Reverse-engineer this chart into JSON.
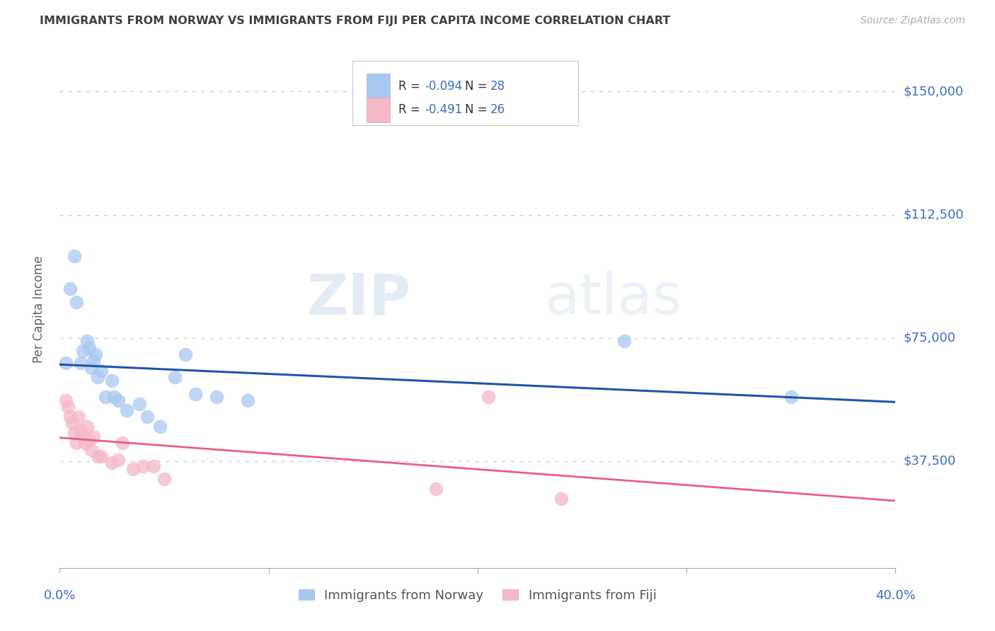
{
  "title": "IMMIGRANTS FROM NORWAY VS IMMIGRANTS FROM FIJI PER CAPITA INCOME CORRELATION CHART",
  "source": "Source: ZipAtlas.com",
  "ylabel": "Per Capita Income",
  "xlim": [
    0.0,
    40.0
  ],
  "ylim": [
    5000,
    162500
  ],
  "yticks": [
    37500,
    75000,
    112500,
    150000
  ],
  "ytick_labels": [
    "$37,500",
    "$75,000",
    "$112,500",
    "$150,000"
  ],
  "xtick_positions": [
    0.0,
    10.0,
    20.0,
    30.0,
    40.0
  ],
  "legend_label1": "Immigrants from Norway",
  "legend_label2": "Immigrants from Fiji",
  "R1": -0.094,
  "N1": 28,
  "R2": -0.491,
  "N2": 26,
  "color_norway": "#a8c8f0",
  "color_fiji": "#f4b8c8",
  "color_norway_line": "#2255aa",
  "color_fiji_line": "#e86080",
  "norway_x": [
    0.3,
    0.5,
    0.7,
    0.8,
    1.0,
    1.1,
    1.3,
    1.4,
    1.5,
    1.6,
    1.7,
    1.8,
    2.0,
    2.2,
    2.5,
    2.6,
    2.8,
    3.2,
    3.8,
    4.2,
    4.8,
    5.5,
    6.0,
    6.5,
    7.5,
    9.0,
    27.0,
    35.0
  ],
  "norway_y": [
    67500,
    90000,
    100000,
    86000,
    67500,
    71000,
    74000,
    72000,
    66000,
    68000,
    70000,
    63000,
    65000,
    57000,
    62000,
    57000,
    56000,
    53000,
    55000,
    51000,
    48000,
    63000,
    70000,
    58000,
    57000,
    56000,
    74000,
    57000
  ],
  "fiji_x": [
    0.3,
    0.4,
    0.5,
    0.6,
    0.7,
    0.8,
    0.9,
    1.0,
    1.1,
    1.2,
    1.3,
    1.4,
    1.5,
    1.6,
    1.8,
    2.0,
    2.5,
    2.8,
    3.0,
    3.5,
    4.0,
    4.5,
    5.0,
    18.0,
    20.5,
    24.0
  ],
  "fiji_y": [
    56000,
    54000,
    51000,
    49000,
    46000,
    43000,
    51000,
    47000,
    45000,
    43000,
    48000,
    44000,
    41000,
    45000,
    39000,
    39000,
    37000,
    38000,
    43000,
    35000,
    36000,
    36000,
    32000,
    29000,
    57000,
    26000
  ],
  "watermark_zip": "ZIP",
  "watermark_atlas": "atlas",
  "background_color": "#ffffff",
  "grid_color": "#c8c8d0",
  "title_color": "#404040",
  "source_color": "#aaaaaa",
  "axis_label_color": "#606060",
  "tick_color_y": "#3a6ebd",
  "tick_color_x": "#3a6ebd",
  "dpi": 100
}
